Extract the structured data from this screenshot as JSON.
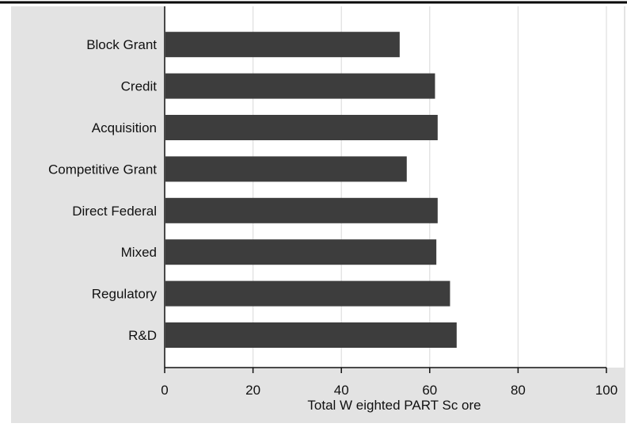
{
  "chart_data": {
    "type": "bar",
    "orientation": "horizontal",
    "categories": [
      "Block Grant",
      "Credit",
      "Acquisition",
      "Competitive Grant",
      "Direct Federal",
      "Mixed",
      "Regulatory",
      "R&D"
    ],
    "values": [
      53.2,
      61.2,
      61.8,
      54.8,
      61.8,
      61.5,
      64.6,
      66.1
    ],
    "xlabel": "Total W eighted PART Sc ore",
    "ylabel": "",
    "xlim": [
      0,
      100
    ],
    "xticks": [
      0,
      20,
      40,
      60,
      80,
      100
    ],
    "grid": "vertical",
    "legend": "none",
    "colors": {
      "bar": "#3d3d3d",
      "plot_background": "#ffffff",
      "outer_background": "#e3e3e3",
      "grid": "#dedede",
      "axis": "#111111",
      "top_rule": "#000000"
    }
  }
}
